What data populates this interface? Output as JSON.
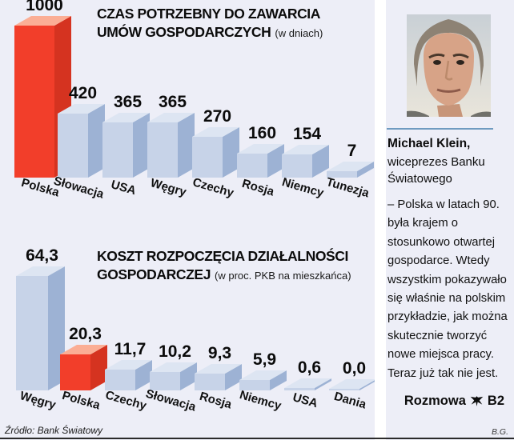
{
  "page": {
    "background": "#ffffff",
    "panel_background": "#EDEEF7"
  },
  "source": "Źródło: Bank Światowy",
  "credit": "B.G.",
  "profile": {
    "photo": "michael-klein-portrait",
    "name": "Michael Klein,",
    "role_line1": "wiceprezes Banku",
    "role_line2": "Światowego",
    "quote": "– Polska w latach 90. była krajem o stosunkowo otwartej gospodarce. Wtedy wszystkim pokazywało się właśnie na polskim przykładzie, jak można skutecznie tworzyć nowe miejsca pracy. Teraz już tak nie jest.",
    "footer_label": "Rozmowa",
    "footer_page": "B2",
    "footer_icon": "eagle-icon"
  },
  "chart_data": [
    {
      "type": "bar",
      "title": "CZAS POTRZEBNY DO ZAWARCIA UMÓW GOSPODARCZYCH",
      "title_line1": "CZAS POTRZEBNY DO ZAWARCIA",
      "title_line2": "UMÓW GOSPODARCZYCH",
      "unit": "(w dniach)",
      "categories": [
        "Polska",
        "Słowacja",
        "USA",
        "Węgry",
        "Czechy",
        "Rosja",
        "Niemcy",
        "Tunezja"
      ],
      "values": [
        1000,
        420,
        365,
        365,
        270,
        160,
        154,
        7
      ],
      "value_labels": [
        "1000",
        "420",
        "365",
        "365",
        "270",
        "160",
        "154",
        "7"
      ],
      "ylim": [
        0,
        1000
      ],
      "grid": false,
      "legend": "none",
      "highlight_category": "Polska",
      "bar_colors": {
        "front": "#C7D3E8",
        "side": "#9DB2D4",
        "top": "#DDE5F2"
      },
      "highlight_colors": {
        "front": "#F23E2A",
        "side": "#D53320",
        "top": "#FBAE95"
      }
    },
    {
      "type": "bar",
      "title": "KOSZT ROZPOCZĘCIA DZIAŁALNOŚCI GOSPODARCZEJ",
      "title_line1": "KOSZT ROZPOCZĘCIA DZIAŁALNOŚCI",
      "title_line2": "GOSPODARCZEJ",
      "unit": "(w proc. PKB na mieszkańca)",
      "categories": [
        "Węgry",
        "Polska",
        "Czechy",
        "Słowacja",
        "Rosja",
        "Niemcy",
        "USA",
        "Dania"
      ],
      "values": [
        64.3,
        20.3,
        11.7,
        10.2,
        9.3,
        5.9,
        0.6,
        0.0
      ],
      "value_labels": [
        "64,3",
        "20,3",
        "11,7",
        "10,2",
        "9,3",
        "5,9",
        "0,6",
        "0,0"
      ],
      "ylim": [
        0,
        65
      ],
      "grid": false,
      "legend": "none",
      "highlight_category": "Polska",
      "bar_colors": {
        "front": "#C7D3E8",
        "side": "#9DB2D4",
        "top": "#DDE5F2"
      },
      "highlight_colors": {
        "front": "#F23E2A",
        "side": "#D53320",
        "top": "#FBAE95"
      }
    }
  ]
}
